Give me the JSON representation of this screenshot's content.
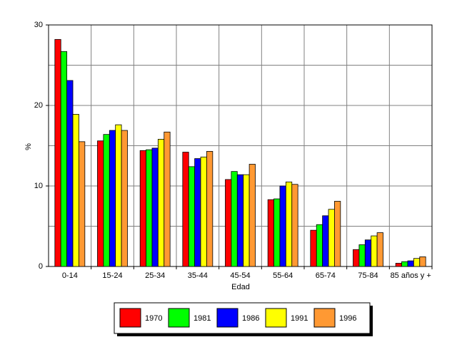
{
  "chart_data": {
    "type": "bar",
    "x_label": "Edad",
    "y_label": "%",
    "categories": [
      "0-14",
      "15-24",
      "25-34",
      "35-44",
      "45-54",
      "55-64",
      "65-74",
      "75-84",
      "85 años y +"
    ],
    "series": [
      {
        "name": "1970",
        "color": "#ff0000",
        "values": [
          28.2,
          15.6,
          14.4,
          14.2,
          10.8,
          8.3,
          4.5,
          2.1,
          0.4
        ]
      },
      {
        "name": "1981",
        "color": "#00ff00",
        "values": [
          26.7,
          16.4,
          14.5,
          12.4,
          11.8,
          8.4,
          5.2,
          2.7,
          0.6
        ]
      },
      {
        "name": "1986",
        "color": "#0000ff",
        "values": [
          23.1,
          16.9,
          14.7,
          13.4,
          11.4,
          10.0,
          6.3,
          3.3,
          0.7
        ]
      },
      {
        "name": "1991",
        "color": "#ffff00",
        "values": [
          18.9,
          17.6,
          15.8,
          13.6,
          11.4,
          10.5,
          7.1,
          3.8,
          1.0
        ]
      },
      {
        "name": "1996",
        "color": "#ff9933",
        "values": [
          15.5,
          16.9,
          16.7,
          14.3,
          12.7,
          10.2,
          8.1,
          4.2,
          1.2
        ]
      }
    ],
    "ylim": [
      0,
      30
    ],
    "yticks": [
      0,
      10,
      20,
      30
    ],
    "minor_yticks": [
      5,
      15,
      25
    ],
    "grid": true
  }
}
